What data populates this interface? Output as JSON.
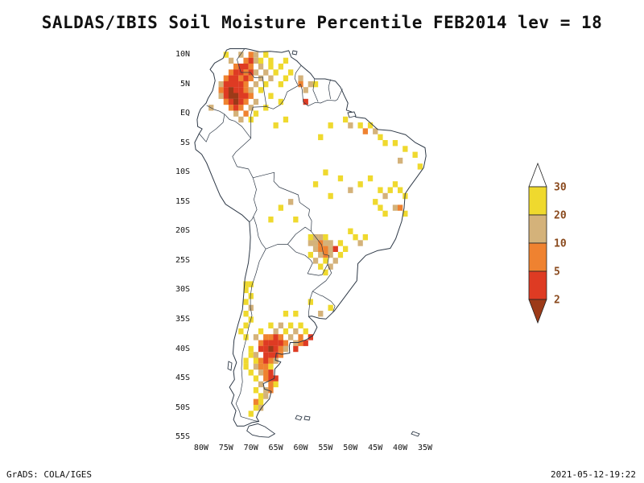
{
  "title": "SALDAS/IBIS Soil Moisture Percentile FEB2014 lev = 18",
  "footer": {
    "left": "GrADS: COLA/IGES",
    "right": "2021-05-12-19:22"
  },
  "map": {
    "line_color": "#2e3947",
    "region": "South America"
  },
  "axes": {
    "lat_ticks": [
      {
        "label": "10N",
        "lat": 10
      },
      {
        "label": "5N",
        "lat": 5
      },
      {
        "label": "EQ",
        "lat": 0
      },
      {
        "label": "5S",
        "lat": -5
      },
      {
        "label": "10S",
        "lat": -10
      },
      {
        "label": "15S",
        "lat": -15
      },
      {
        "label": "20S",
        "lat": -20
      },
      {
        "label": "25S",
        "lat": -25
      },
      {
        "label": "30S",
        "lat": -30
      },
      {
        "label": "35S",
        "lat": -35
      },
      {
        "label": "40S",
        "lat": -40
      },
      {
        "label": "45S",
        "lat": -45
      },
      {
        "label": "50S",
        "lat": -50
      },
      {
        "label": "55S",
        "lat": -55
      }
    ],
    "lon_ticks": [
      {
        "label": "80W",
        "lon": -80
      },
      {
        "label": "75W",
        "lon": -75
      },
      {
        "label": "70W",
        "lon": -70
      },
      {
        "label": "65W",
        "lon": -65
      },
      {
        "label": "60W",
        "lon": -60
      },
      {
        "label": "55W",
        "lon": -55
      },
      {
        "label": "50W",
        "lon": -50
      },
      {
        "label": "45W",
        "lon": -45
      },
      {
        "label": "40W",
        "lon": -40
      },
      {
        "label": "35W",
        "lon": -35
      }
    ]
  },
  "colorbar": {
    "values": [
      "30",
      "20",
      "10",
      "5",
      "2"
    ],
    "segment_colors": [
      "#ffffff",
      "#efd92e",
      "#d4b27a",
      "#ef8230",
      "#de3b23",
      "#9c3a18"
    ],
    "label_color": "#8a4a1e"
  },
  "chart_data": {
    "type": "heatmap",
    "title": "SALDAS/IBIS Soil Moisture Percentile FEB2014 lev = 18",
    "variable": "Soil Moisture Percentile",
    "time": "FEB2014",
    "level": 18,
    "lon_range": [
      -81.6,
      -31.4
    ],
    "lat_range": [
      -56.3,
      11.1
    ],
    "percentile_levels": [
      30,
      20,
      10,
      5,
      2
    ],
    "cell_levels": [
      "20-30",
      "10-20",
      "5-10",
      "2-5",
      "<2"
    ],
    "cell_colors": [
      "#efd92e",
      "#d4b27a",
      "#ef8230",
      "#de3b23",
      "#9c3a18"
    ],
    "cells": [
      [
        -75,
        10,
        0
      ],
      [
        -72,
        10,
        1
      ],
      [
        -70,
        10,
        2
      ],
      [
        -69,
        10,
        1
      ],
      [
        -67,
        10,
        0
      ],
      [
        -74,
        9,
        1
      ],
      [
        -71,
        9,
        2
      ],
      [
        -70,
        9,
        3
      ],
      [
        -69,
        9,
        1
      ],
      [
        -68,
        9,
        0
      ],
      [
        -66,
        9,
        0
      ],
      [
        -63,
        9,
        0
      ],
      [
        -73,
        8,
        2
      ],
      [
        -72,
        8,
        3
      ],
      [
        -71,
        8,
        3
      ],
      [
        -70,
        8,
        2
      ],
      [
        -68,
        8,
        1
      ],
      [
        -66,
        8,
        0
      ],
      [
        -64,
        8,
        0
      ],
      [
        -74,
        7,
        2
      ],
      [
        -73,
        7,
        3
      ],
      [
        -72,
        7,
        3
      ],
      [
        -71,
        7,
        2
      ],
      [
        -70,
        7,
        3
      ],
      [
        -69,
        7,
        1
      ],
      [
        -67,
        7,
        1
      ],
      [
        -65,
        7,
        0
      ],
      [
        -62,
        7,
        0
      ],
      [
        -75,
        6,
        2
      ],
      [
        -74,
        6,
        3
      ],
      [
        -73,
        6,
        3
      ],
      [
        -72,
        6,
        2
      ],
      [
        -71,
        6,
        3
      ],
      [
        -70,
        6,
        2
      ],
      [
        -68,
        6,
        1
      ],
      [
        -66,
        6,
        1
      ],
      [
        -63,
        6,
        0
      ],
      [
        -60,
        6,
        1
      ],
      [
        -76,
        5,
        1
      ],
      [
        -75,
        5,
        3
      ],
      [
        -74,
        5,
        3
      ],
      [
        -73,
        5,
        3
      ],
      [
        -72,
        5,
        3
      ],
      [
        -71,
        5,
        2
      ],
      [
        -69,
        5,
        1
      ],
      [
        -67,
        5,
        0
      ],
      [
        -64,
        5,
        0
      ],
      [
        -60,
        5,
        2
      ],
      [
        -58,
        5,
        1
      ],
      [
        -57,
        5,
        0
      ],
      [
        -76,
        4,
        2
      ],
      [
        -75,
        4,
        3
      ],
      [
        -74,
        4,
        4
      ],
      [
        -73,
        4,
        3
      ],
      [
        -72,
        4,
        3
      ],
      [
        -71,
        4,
        2
      ],
      [
        -70,
        4,
        1
      ],
      [
        -68,
        4,
        0
      ],
      [
        -59,
        4,
        1
      ],
      [
        -76,
        3,
        1
      ],
      [
        -75,
        3,
        3
      ],
      [
        -74,
        3,
        4
      ],
      [
        -73,
        3,
        4
      ],
      [
        -72,
        3,
        3
      ],
      [
        -71,
        3,
        3
      ],
      [
        -70,
        3,
        2
      ],
      [
        -66,
        3,
        0
      ],
      [
        -75,
        2,
        2
      ],
      [
        -74,
        2,
        3
      ],
      [
        -73,
        2,
        4
      ],
      [
        -72,
        2,
        3
      ],
      [
        -71,
        2,
        2
      ],
      [
        -69,
        2,
        1
      ],
      [
        -64,
        2,
        0
      ],
      [
        -59,
        2,
        3
      ],
      [
        -74,
        1,
        2
      ],
      [
        -73,
        1,
        3
      ],
      [
        -72,
        1,
        2
      ],
      [
        -70,
        1,
        1
      ],
      [
        -67,
        1,
        0
      ],
      [
        -78,
        1,
        1
      ],
      [
        -73,
        0,
        1
      ],
      [
        -71,
        0,
        2
      ],
      [
        -69,
        0,
        0
      ],
      [
        -72,
        -1,
        1
      ],
      [
        -70,
        -1,
        0
      ],
      [
        -65,
        -2,
        0
      ],
      [
        -63,
        -1,
        0
      ],
      [
        -51,
        -1,
        0
      ],
      [
        -50,
        -2,
        1
      ],
      [
        -48,
        -2,
        0
      ],
      [
        -47,
        -3,
        2
      ],
      [
        -46,
        -2,
        0
      ],
      [
        -45,
        -3,
        1
      ],
      [
        -44,
        -4,
        0
      ],
      [
        -43,
        -5,
        0
      ],
      [
        -41,
        -5,
        0
      ],
      [
        -39,
        -6,
        0
      ],
      [
        -37,
        -7,
        0
      ],
      [
        -40,
        -8,
        1
      ],
      [
        -36,
        -9,
        0
      ],
      [
        -54,
        -2,
        0
      ],
      [
        -56,
        -4,
        0
      ],
      [
        -57,
        -12,
        0
      ],
      [
        -55,
        -10,
        0
      ],
      [
        -52,
        -11,
        0
      ],
      [
        -50,
        -13,
        1
      ],
      [
        -54,
        -14,
        0
      ],
      [
        -48,
        -12,
        0
      ],
      [
        -46,
        -11,
        0
      ],
      [
        -64,
        -16,
        0
      ],
      [
        -62,
        -15,
        1
      ],
      [
        -66,
        -18,
        0
      ],
      [
        -61,
        -18,
        0
      ],
      [
        -44,
        -13,
        0
      ],
      [
        -43,
        -14,
        1
      ],
      [
        -42,
        -13,
        0
      ],
      [
        -44,
        -16,
        0
      ],
      [
        -43,
        -17,
        0
      ],
      [
        -41,
        -16,
        1
      ],
      [
        -40,
        -16,
        2
      ],
      [
        -39,
        -17,
        0
      ],
      [
        -41,
        -12,
        0
      ],
      [
        -45,
        -15,
        0
      ],
      [
        -40,
        -13,
        0
      ],
      [
        -39,
        -14,
        0
      ],
      [
        -58,
        -21,
        0
      ],
      [
        -57,
        -21,
        1
      ],
      [
        -56,
        -21,
        1
      ],
      [
        -55,
        -21,
        0
      ],
      [
        -58,
        -22,
        1
      ],
      [
        -57,
        -22,
        1
      ],
      [
        -56,
        -22,
        2
      ],
      [
        -55,
        -22,
        1
      ],
      [
        -54,
        -22,
        1
      ],
      [
        -52,
        -22,
        0
      ],
      [
        -57,
        -23,
        1
      ],
      [
        -56,
        -23,
        2
      ],
      [
        -55,
        -23,
        2
      ],
      [
        -54,
        -23,
        1
      ],
      [
        -53,
        -23,
        3
      ],
      [
        -51,
        -23,
        0
      ],
      [
        -58,
        -24,
        0
      ],
      [
        -56,
        -24,
        1
      ],
      [
        -55,
        -24,
        2
      ],
      [
        -54,
        -24,
        1
      ],
      [
        -52,
        -24,
        0
      ],
      [
        -57,
        -25,
        1
      ],
      [
        -55,
        -25,
        0
      ],
      [
        -53,
        -25,
        1
      ],
      [
        -56,
        -26,
        0
      ],
      [
        -54,
        -26,
        1
      ],
      [
        -55,
        -27,
        0
      ],
      [
        -49,
        -21,
        0
      ],
      [
        -48,
        -22,
        1
      ],
      [
        -50,
        -20,
        0
      ],
      [
        -47,
        -21,
        0
      ],
      [
        -54,
        -33,
        0
      ],
      [
        -58,
        -32,
        0
      ],
      [
        -56,
        -34,
        1
      ],
      [
        -71,
        -29,
        0
      ],
      [
        -70,
        -29,
        0
      ],
      [
        -71,
        -30,
        0
      ],
      [
        -70,
        -31,
        0
      ],
      [
        -71,
        -32,
        0
      ],
      [
        -70,
        -33,
        1
      ],
      [
        -71,
        -34,
        0
      ],
      [
        -70,
        -35,
        0
      ],
      [
        -71,
        -36,
        0
      ],
      [
        -72,
        -37,
        0
      ],
      [
        -71,
        -38,
        0
      ],
      [
        -63,
        -34,
        0
      ],
      [
        -61,
        -34,
        0
      ],
      [
        -66,
        -36,
        0
      ],
      [
        -64,
        -36,
        1
      ],
      [
        -62,
        -36,
        0
      ],
      [
        -60,
        -36,
        0
      ],
      [
        -68,
        -37,
        0
      ],
      [
        -65,
        -37,
        1
      ],
      [
        -63,
        -37,
        0
      ],
      [
        -61,
        -37,
        1
      ],
      [
        -59,
        -37,
        0
      ],
      [
        -69,
        -38,
        1
      ],
      [
        -67,
        -38,
        2
      ],
      [
        -66,
        -38,
        2
      ],
      [
        -65,
        -38,
        3
      ],
      [
        -64,
        -38,
        2
      ],
      [
        -62,
        -38,
        1
      ],
      [
        -60,
        -38,
        2
      ],
      [
        -58,
        -38,
        3
      ],
      [
        -68,
        -39,
        2
      ],
      [
        -67,
        -39,
        3
      ],
      [
        -66,
        -39,
        3
      ],
      [
        -65,
        -39,
        3
      ],
      [
        -64,
        -39,
        3
      ],
      [
        -63,
        -39,
        2
      ],
      [
        -61,
        -39,
        1
      ],
      [
        -60,
        -39,
        2
      ],
      [
        -59,
        -39,
        3
      ],
      [
        -70,
        -40,
        0
      ],
      [
        -68,
        -40,
        3
      ],
      [
        -67,
        -40,
        3
      ],
      [
        -66,
        -40,
        4
      ],
      [
        -65,
        -40,
        3
      ],
      [
        -64,
        -40,
        2
      ],
      [
        -63,
        -40,
        1
      ],
      [
        -61,
        -40,
        3
      ],
      [
        -70,
        -41,
        0
      ],
      [
        -69,
        -41,
        1
      ],
      [
        -67,
        -41,
        3
      ],
      [
        -66,
        -41,
        3
      ],
      [
        -65,
        -41,
        3
      ],
      [
        -64,
        -41,
        2
      ],
      [
        -71,
        -42,
        0
      ],
      [
        -69,
        -42,
        0
      ],
      [
        -68,
        -42,
        2
      ],
      [
        -67,
        -42,
        3
      ],
      [
        -66,
        -42,
        2
      ],
      [
        -65,
        -42,
        1
      ],
      [
        -71,
        -43,
        0
      ],
      [
        -69,
        -43,
        1
      ],
      [
        -68,
        -43,
        2
      ],
      [
        -67,
        -43,
        2
      ],
      [
        -66,
        -43,
        0
      ],
      [
        -70,
        -44,
        0
      ],
      [
        -68,
        -44,
        1
      ],
      [
        -67,
        -44,
        2
      ],
      [
        -66,
        -44,
        3
      ],
      [
        -69,
        -45,
        0
      ],
      [
        -67,
        -45,
        2
      ],
      [
        -66,
        -45,
        3
      ],
      [
        -65,
        -45,
        3
      ],
      [
        -68,
        -46,
        1
      ],
      [
        -66,
        -46,
        2
      ],
      [
        -65,
        -46,
        0
      ],
      [
        -69,
        -47,
        0
      ],
      [
        -67,
        -47,
        1
      ],
      [
        -66,
        -47,
        2
      ],
      [
        -68,
        -48,
        0
      ],
      [
        -67,
        -48,
        1
      ],
      [
        -69,
        -49,
        2
      ],
      [
        -68,
        -49,
        0
      ],
      [
        -69,
        -50,
        0
      ],
      [
        -68,
        -50,
        1
      ],
      [
        -70,
        -51,
        0
      ]
    ]
  }
}
